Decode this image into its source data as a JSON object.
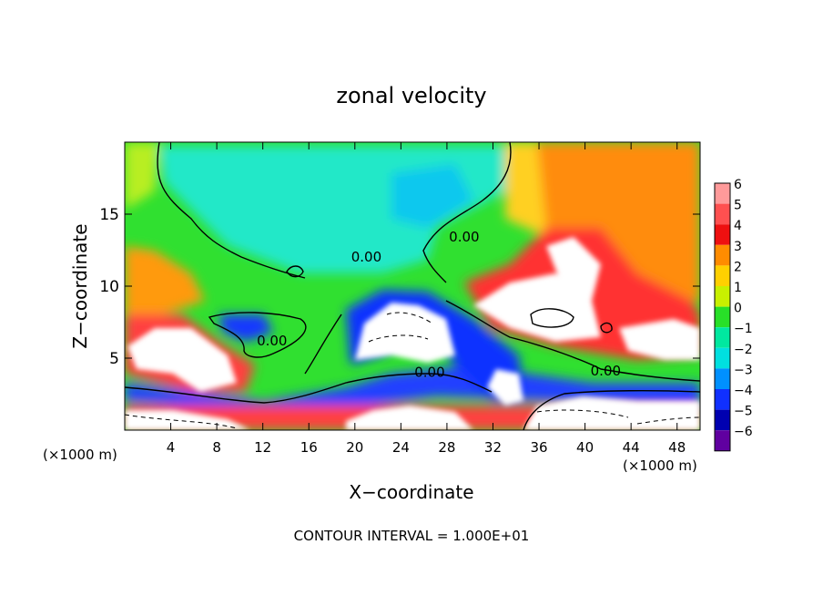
{
  "chart_data": {
    "type": "heatmap",
    "title": "zonal velocity",
    "xlabel": "X−coordinate",
    "ylabel": "Z−coordinate",
    "x_unit_left": "(×1000 m)",
    "x_unit_right": "(×1000 m)",
    "footer": "CONTOUR INTERVAL = 1.000E+01",
    "xlim": [
      0,
      50
    ],
    "ylim": [
      0,
      20
    ],
    "x_ticks": [
      4,
      8,
      12,
      16,
      20,
      24,
      28,
      32,
      36,
      40,
      44,
      48
    ],
    "x_tick_labels": [
      "4",
      "8",
      "12",
      "16",
      "20",
      "24",
      "28",
      "32",
      "36",
      "40",
      "44",
      "48"
    ],
    "y_ticks": [
      5,
      10,
      15
    ],
    "y_tick_labels": [
      "5",
      "10",
      "15"
    ],
    "contour_labels": [
      {
        "text": "0.00",
        "x": 21.0,
        "y": 11.7
      },
      {
        "text": "0.00",
        "x": 12.8,
        "y": 5.9
      },
      {
        "text": "0.00",
        "x": 29.5,
        "y": 13.1
      },
      {
        "text": "0.00",
        "x": 26.5,
        "y": 3.7
      },
      {
        "text": "0.00",
        "x": 41.8,
        "y": 3.8
      }
    ],
    "colorbar": {
      "levels": [
        6,
        5,
        4,
        3,
        2,
        1,
        0,
        -1,
        -2,
        -3,
        -4,
        -5,
        -6
      ],
      "labels": [
        "6",
        "5",
        "4",
        "3",
        "2",
        "1",
        "0",
        "−1",
        "−2",
        "−3",
        "−4",
        "−5",
        "−6"
      ],
      "colors": [
        "#ff9a9a",
        "#ff5050",
        "#ee1010",
        "#ff8c00",
        "#ffd000",
        "#c8f000",
        "#28e028",
        "#00e8a0",
        "#00e0e0",
        "#0090ff",
        "#1030ff",
        "#0000b0",
        "#6000a0"
      ]
    },
    "fields": {
      "west_positive_band": {
        "value": 3.5
      },
      "upper_left_region": {
        "value": 1.0
      },
      "central_upper_region": {
        "value": -1.5
      },
      "upper_right_region": {
        "value": 3.0
      },
      "right_jet_core": {
        "value": 6.0
      },
      "central_bottom_jet": {
        "value": -5.0
      },
      "low_level_positive_band": {
        "value": 4.0
      }
    }
  }
}
